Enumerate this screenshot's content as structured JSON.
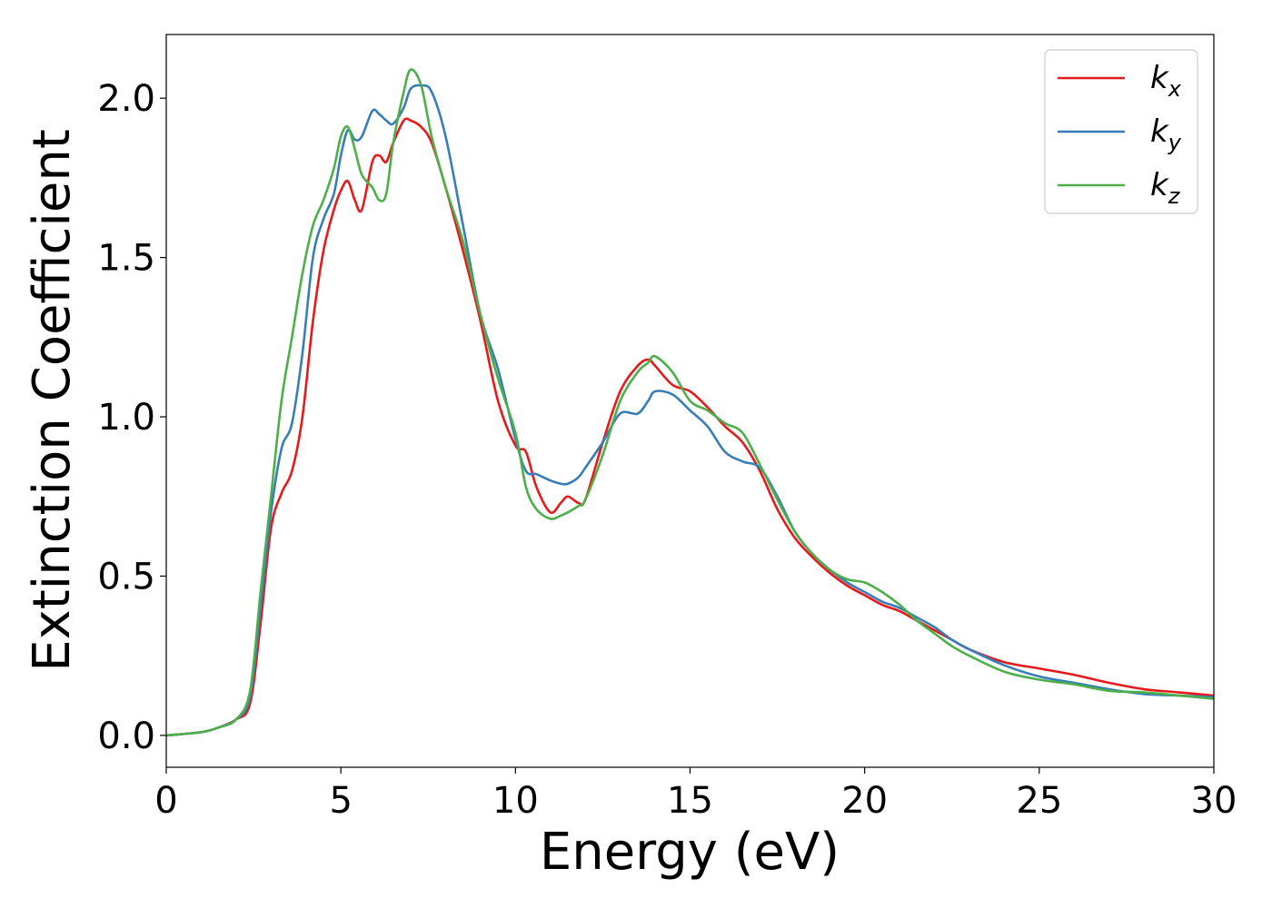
{
  "chart_data": {
    "type": "line",
    "xlabel": "Energy (eV)",
    "ylabel": "Extinction Coefficient",
    "xlim": [
      0,
      30
    ],
    "ylim": [
      -0.1,
      2.2
    ],
    "xticks": [
      0,
      5,
      10,
      15,
      20,
      25,
      30
    ],
    "xtick_labels": [
      "0",
      "5",
      "10",
      "15",
      "20",
      "25",
      "30"
    ],
    "yticks": [
      0.0,
      0.5,
      1.0,
      1.5,
      2.0
    ],
    "ytick_labels": [
      "0.0",
      "0.5",
      "1.0",
      "1.5",
      "2.0"
    ],
    "grid": false,
    "legend_position": "top-right",
    "series": [
      {
        "name": "k_x",
        "legend_main": "k",
        "legend_sub": "x",
        "color": "#e41a1c",
        "x": [
          0,
          1,
          1.5,
          2.0,
          2.4,
          2.7,
          3.0,
          3.3,
          3.6,
          3.9,
          4.2,
          4.5,
          4.8,
          5.0,
          5.2,
          5.4,
          5.6,
          5.9,
          6.1,
          6.3,
          6.5,
          6.8,
          7.0,
          7.3,
          7.6,
          8.0,
          8.5,
          9.0,
          9.5,
          10.0,
          10.3,
          10.6,
          11.0,
          11.3,
          11.5,
          11.8,
          12.0,
          12.5,
          13.0,
          13.5,
          13.8,
          14.0,
          14.5,
          15.0,
          15.5,
          16.0,
          16.5,
          17.0,
          17.5,
          18.0,
          18.5,
          19.0,
          19.5,
          20.0,
          20.5,
          21.0,
          21.5,
          22.0,
          22.5,
          23.0,
          24.0,
          25.0,
          26.0,
          27.0,
          28.0,
          29.0,
          30.0
        ],
        "y": [
          0,
          0.01,
          0.025,
          0.05,
          0.1,
          0.35,
          0.65,
          0.76,
          0.83,
          1.0,
          1.3,
          1.52,
          1.65,
          1.71,
          1.74,
          1.68,
          1.65,
          1.8,
          1.82,
          1.8,
          1.86,
          1.93,
          1.93,
          1.91,
          1.86,
          1.72,
          1.52,
          1.3,
          1.05,
          0.91,
          0.89,
          0.78,
          0.7,
          0.73,
          0.75,
          0.73,
          0.74,
          0.92,
          1.08,
          1.16,
          1.18,
          1.16,
          1.1,
          1.08,
          1.03,
          0.97,
          0.92,
          0.83,
          0.71,
          0.62,
          0.56,
          0.51,
          0.47,
          0.44,
          0.41,
          0.39,
          0.36,
          0.33,
          0.3,
          0.27,
          0.23,
          0.21,
          0.19,
          0.165,
          0.145,
          0.135,
          0.125
        ]
      },
      {
        "name": "k_y",
        "legend_main": "k",
        "legend_sub": "y",
        "color": "#377eb8",
        "x": [
          0,
          1,
          1.5,
          2.0,
          2.4,
          2.7,
          3.0,
          3.3,
          3.6,
          3.9,
          4.2,
          4.5,
          4.8,
          5.0,
          5.2,
          5.4,
          5.6,
          5.9,
          6.1,
          6.3,
          6.5,
          6.8,
          7.0,
          7.3,
          7.6,
          8.0,
          8.5,
          9.0,
          9.5,
          10.0,
          10.3,
          10.6,
          11.0,
          11.3,
          11.5,
          11.8,
          12.0,
          12.5,
          13.0,
          13.5,
          13.8,
          14.0,
          14.5,
          15.0,
          15.5,
          16.0,
          16.5,
          17.0,
          17.5,
          18.0,
          18.5,
          19.0,
          19.5,
          20.0,
          20.5,
          21.0,
          21.5,
          22.0,
          22.5,
          23.0,
          24.0,
          25.0,
          26.0,
          27.0,
          28.0,
          29.0,
          30.0
        ],
        "y": [
          0,
          0.01,
          0.025,
          0.05,
          0.12,
          0.4,
          0.7,
          0.9,
          0.98,
          1.2,
          1.5,
          1.62,
          1.7,
          1.82,
          1.9,
          1.87,
          1.88,
          1.96,
          1.95,
          1.93,
          1.92,
          1.97,
          2.03,
          2.04,
          2.02,
          1.88,
          1.6,
          1.32,
          1.15,
          0.93,
          0.83,
          0.82,
          0.8,
          0.79,
          0.79,
          0.81,
          0.84,
          0.92,
          1.01,
          1.01,
          1.05,
          1.08,
          1.07,
          1.02,
          0.97,
          0.89,
          0.86,
          0.84,
          0.75,
          0.64,
          0.57,
          0.52,
          0.48,
          0.45,
          0.42,
          0.4,
          0.37,
          0.34,
          0.3,
          0.27,
          0.22,
          0.185,
          0.165,
          0.145,
          0.13,
          0.125,
          0.12
        ]
      },
      {
        "name": "k_z",
        "legend_main": "k",
        "legend_sub": "z",
        "color": "#4daf4a",
        "x": [
          0,
          1,
          1.5,
          2.0,
          2.4,
          2.7,
          3.0,
          3.3,
          3.6,
          3.9,
          4.2,
          4.5,
          4.8,
          5.0,
          5.2,
          5.4,
          5.6,
          5.9,
          6.1,
          6.3,
          6.5,
          6.8,
          7.0,
          7.3,
          7.6,
          8.0,
          8.5,
          9.0,
          9.5,
          10.0,
          10.3,
          10.6,
          11.0,
          11.3,
          11.5,
          11.8,
          12.0,
          12.5,
          13.0,
          13.5,
          13.8,
          14.0,
          14.5,
          15.0,
          15.5,
          16.0,
          16.5,
          17.0,
          17.5,
          18.0,
          18.5,
          19.0,
          19.5,
          20.0,
          20.5,
          21.0,
          21.5,
          22.0,
          22.5,
          23.0,
          24.0,
          25.0,
          26.0,
          27.0,
          28.0,
          29.0,
          30.0
        ],
        "y": [
          0,
          0.01,
          0.025,
          0.05,
          0.14,
          0.45,
          0.75,
          1.05,
          1.25,
          1.45,
          1.6,
          1.68,
          1.78,
          1.88,
          1.91,
          1.84,
          1.76,
          1.72,
          1.68,
          1.7,
          1.86,
          2.02,
          2.09,
          2.04,
          1.88,
          1.72,
          1.55,
          1.32,
          1.12,
          0.95,
          0.78,
          0.71,
          0.68,
          0.69,
          0.7,
          0.72,
          0.74,
          0.88,
          1.05,
          1.14,
          1.17,
          1.19,
          1.14,
          1.05,
          1.02,
          0.98,
          0.95,
          0.85,
          0.74,
          0.64,
          0.57,
          0.52,
          0.49,
          0.48,
          0.45,
          0.41,
          0.36,
          0.32,
          0.28,
          0.25,
          0.2,
          0.175,
          0.16,
          0.14,
          0.135,
          0.125,
          0.115
        ]
      }
    ]
  }
}
